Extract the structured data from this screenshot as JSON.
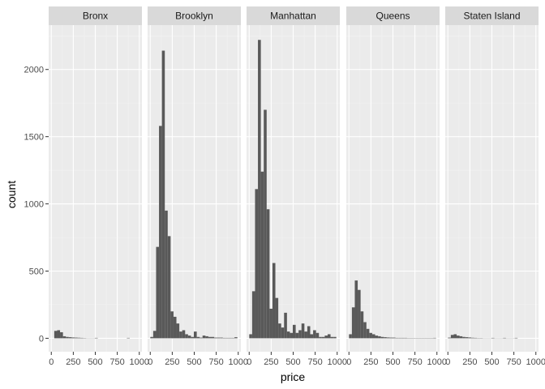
{
  "chart_data": {
    "type": "bar",
    "subtype": "faceted-histogram",
    "xlabel": "price",
    "ylabel": "count",
    "xlim": [
      -30,
      1030
    ],
    "ylim": [
      -100,
      2330
    ],
    "x_ticks": [
      0,
      250,
      500,
      750,
      1000
    ],
    "x_tick_labels": [
      "0",
      "250",
      "500",
      "750",
      "1000"
    ],
    "y_ticks": [
      0,
      500,
      1000,
      1500,
      2000
    ],
    "y_tick_labels": [
      "0",
      "500",
      "1000",
      "1500",
      "2000"
    ],
    "bin_width": 33,
    "grid": true,
    "colors": {
      "panel_bg": "#ebebeb",
      "strip_bg": "#d9d9d9",
      "bar": "#595959",
      "grid_major": "#ffffff",
      "grid_minor": "#f2f2f2"
    },
    "facets": [
      {
        "name": "Bronx",
        "x": [
          50,
          83,
          116,
          149,
          182,
          215,
          248,
          281,
          314,
          347,
          380,
          413,
          446,
          479,
          512,
          875
        ],
        "counts": [
          55,
          60,
          45,
          15,
          10,
          8,
          6,
          5,
          4,
          3,
          2,
          1,
          1,
          1,
          3,
          3
        ]
      },
      {
        "name": "Brooklyn",
        "x": [
          17,
          50,
          83,
          116,
          149,
          182,
          215,
          248,
          281,
          314,
          347,
          380,
          413,
          446,
          479,
          512,
          545,
          578,
          611,
          644,
          677,
          710,
          743,
          776,
          809,
          842,
          875,
          908,
          941,
          974
        ],
        "counts": [
          10,
          55,
          680,
          1580,
          2140,
          950,
          760,
          200,
          160,
          110,
          50,
          60,
          30,
          20,
          10,
          50,
          10,
          5,
          20,
          15,
          10,
          10,
          5,
          5,
          5,
          3,
          3,
          3,
          3,
          8
        ]
      },
      {
        "name": "Manhattan",
        "x": [
          17,
          50,
          83,
          116,
          149,
          182,
          215,
          248,
          281,
          314,
          347,
          380,
          413,
          446,
          479,
          512,
          545,
          578,
          611,
          644,
          677,
          710,
          743,
          776,
          809,
          842,
          875,
          908,
          941,
          974
        ],
        "counts": [
          30,
          350,
          1110,
          2220,
          1240,
          1700,
          960,
          220,
          560,
          300,
          110,
          80,
          190,
          50,
          40,
          100,
          40,
          60,
          110,
          50,
          90,
          30,
          60,
          40,
          10,
          10,
          20,
          30,
          10,
          10
        ]
      },
      {
        "name": "Queens",
        "x": [
          17,
          50,
          83,
          116,
          149,
          182,
          215,
          248,
          281,
          314,
          347,
          380,
          413,
          446,
          479,
          512,
          545,
          578,
          611,
          644,
          677,
          710,
          743,
          776,
          809,
          842,
          875,
          908,
          941,
          974
        ],
        "counts": [
          30,
          230,
          430,
          360,
          200,
          120,
          70,
          40,
          30,
          20,
          15,
          10,
          8,
          6,
          5,
          5,
          3,
          3,
          3,
          3,
          2,
          2,
          2,
          2,
          2,
          2,
          2,
          2,
          2,
          3
        ]
      },
      {
        "name": "Staten Island",
        "x": [
          17,
          50,
          83,
          116,
          149,
          182,
          215,
          248,
          281,
          314,
          347,
          380,
          413,
          446,
          479,
          512,
          545,
          578,
          611,
          644,
          677,
          710,
          743,
          776
        ],
        "counts": [
          5,
          25,
          30,
          20,
          15,
          10,
          8,
          6,
          4,
          3,
          2,
          2,
          1,
          1,
          1,
          3,
          1,
          1,
          1,
          3,
          1,
          1,
          1,
          3
        ]
      }
    ]
  }
}
